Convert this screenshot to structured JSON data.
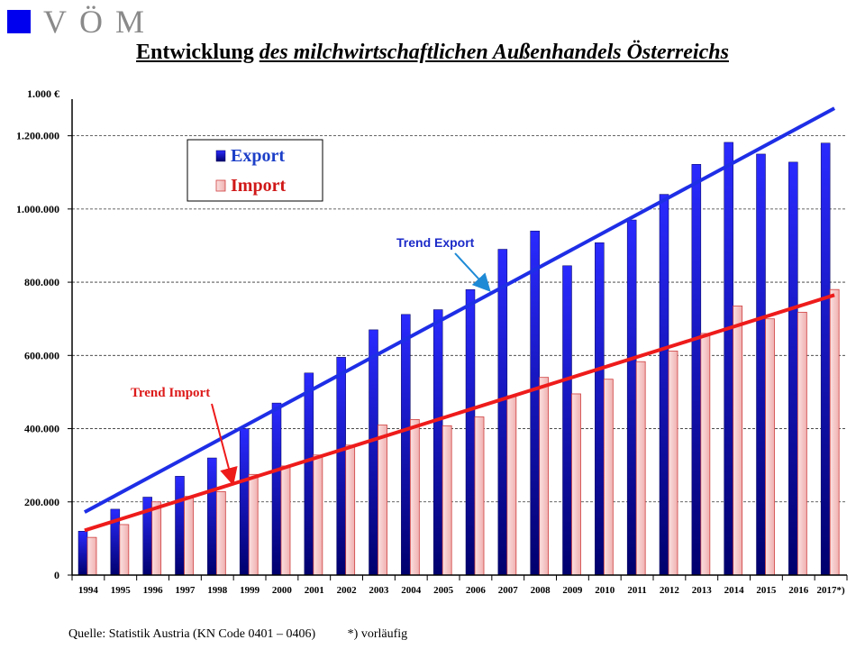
{
  "logo": {
    "text": "VÖM",
    "color": "#0000ee"
  },
  "title": {
    "bold": "Entwicklung",
    "italic": "des milchwirtschaftlichen Außenhandels Österreichs"
  },
  "footer": {
    "source": "Quelle:  Statistik  Austria  (KN Code 0401 – 0406)",
    "note": "*) vorläufig"
  },
  "chart_data": {
    "type": "bar",
    "unit_label": "1.000 €",
    "categories": [
      "1994",
      "1995",
      "1996",
      "1997",
      "1998",
      "1999",
      "2000",
      "2001",
      "2002",
      "2003",
      "2004",
      "2005",
      "2006",
      "2007",
      "2008",
      "2009",
      "2010",
      "2011",
      "2012",
      "2013",
      "2014",
      "2015",
      "2016",
      "2017*)"
    ],
    "series": [
      {
        "name": "Export",
        "color": "#0000dd",
        "values": [
          120000,
          180000,
          213000,
          270000,
          320000,
          400000,
          470000,
          552000,
          595000,
          670000,
          712000,
          725000,
          780000,
          890000,
          940000,
          845000,
          908000,
          970000,
          1040000,
          1122000,
          1182000,
          1150000,
          1128000,
          1180000
        ]
      },
      {
        "name": "Import",
        "color": "#f4c0c0",
        "values": [
          103000,
          138000,
          200000,
          215000,
          228000,
          275000,
          298000,
          328000,
          355000,
          410000,
          425000,
          408000,
          432000,
          490000,
          540000,
          495000,
          535000,
          583000,
          612000,
          660000,
          735000,
          700000,
          718000,
          780000
        ]
      }
    ],
    "trends": [
      {
        "label": "Trend Export",
        "color": "#1e2ee6",
        "start": 172000,
        "end": 1275000
      },
      {
        "label": "Trend Import",
        "color": "#ee1b1b",
        "start": 122000,
        "end": 765000
      }
    ],
    "yticks": [
      0,
      200000,
      400000,
      600000,
      800000,
      1000000,
      1200000
    ],
    "ytick_labels": [
      "0",
      "200.000",
      "400.000",
      "600.000",
      "800.000",
      "1.000.000",
      "1.200.000"
    ],
    "ylim": [
      0,
      1300000
    ],
    "grid": true,
    "legend": "top-left"
  }
}
